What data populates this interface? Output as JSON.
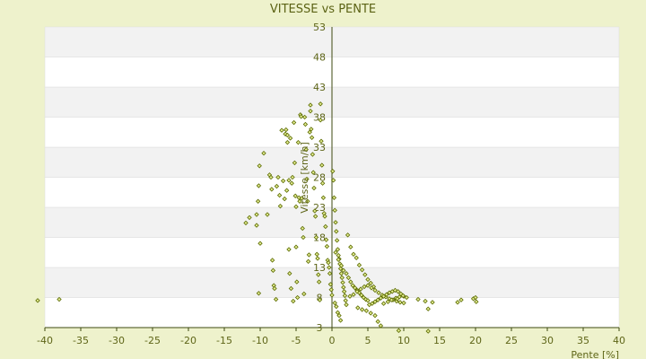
{
  "chart_data": {
    "type": "scatter",
    "title": "VITESSE vs PENTE",
    "xlabel": "Pente [%]",
    "ylabel": "Vitesse [km/h]",
    "xlim": [
      -40,
      40
    ],
    "ylim": [
      3,
      53
    ],
    "x_ticks": [
      "-40",
      "-35",
      "-30",
      "-25",
      "-20",
      "-15",
      "-10",
      "-5",
      "0",
      "5",
      "10",
      "15",
      "20",
      "25",
      "30",
      "35",
      "40"
    ],
    "y_ticks": [
      "53",
      "48",
      "43",
      "38",
      "33",
      "28",
      "23",
      "18",
      "13",
      "8",
      "3"
    ],
    "grid": "horizontal bands",
    "legend": "none",
    "colors": {
      "background": "#eef2cc",
      "band_light": "#ffffff",
      "band_dark": "#f2f2f2",
      "axis": "#3e4a10",
      "point_stroke": "#5a6a00",
      "point_fill": "#e3ec90"
    },
    "series": [
      {
        "points": [
          [
            -41,
            7.5
          ],
          [
            -38,
            7.7
          ],
          [
            -12,
            20.4
          ],
          [
            -11.5,
            21.3
          ],
          [
            -10.5,
            20.0
          ],
          [
            -10.3,
            24.0
          ],
          [
            -10.2,
            26.6
          ],
          [
            -10.5,
            21.8
          ],
          [
            -10.2,
            8.7
          ],
          [
            -10.1,
            29.9
          ],
          [
            -10,
            17.0
          ],
          [
            -9.5,
            32.0
          ],
          [
            -9.0,
            21.8
          ],
          [
            -8.7,
            28.4
          ],
          [
            -8.5,
            28.0
          ],
          [
            -8.4,
            26.0
          ],
          [
            -8.3,
            14.2
          ],
          [
            -8.2,
            12.5
          ],
          [
            -8.1,
            10.0
          ],
          [
            -8.0,
            9.5
          ],
          [
            -7.8,
            7.7
          ],
          [
            -7.7,
            26.5
          ],
          [
            -7.5,
            28.0
          ],
          [
            -7.3,
            25.0
          ],
          [
            -7.2,
            23.2
          ],
          [
            -7.0,
            35.8
          ],
          [
            -6.8,
            27.4
          ],
          [
            -6.6,
            24.4
          ],
          [
            -6.5,
            35.2
          ],
          [
            -6.4,
            35.9
          ],
          [
            -6.3,
            25.8
          ],
          [
            -6.2,
            35.0
          ],
          [
            -6.2,
            33.8
          ],
          [
            -6.0,
            27.5
          ],
          [
            -6.0,
            16.0
          ],
          [
            -5.9,
            12.0
          ],
          [
            -5.8,
            34.5
          ],
          [
            -5.7,
            9.5
          ],
          [
            -5.6,
            27.0
          ],
          [
            -5.5,
            28.0
          ],
          [
            -5.4,
            7.4
          ],
          [
            -5.3,
            37.1
          ],
          [
            -5.2,
            30.4
          ],
          [
            -5.1,
            24.9
          ],
          [
            -5.0,
            23.1
          ],
          [
            -5.0,
            16.4
          ],
          [
            -4.9,
            10.6
          ],
          [
            -4.8,
            8.0
          ],
          [
            -4.7,
            33.8
          ],
          [
            -4.6,
            24.6
          ],
          [
            -4.5,
            24.0
          ],
          [
            -4.4,
            38.4
          ],
          [
            -4.3,
            38.1
          ],
          [
            -4.2,
            24.5
          ],
          [
            -4.1,
            19.5
          ],
          [
            -4.0,
            18.0
          ],
          [
            -3.9,
            8.6
          ],
          [
            -3.8,
            38.0
          ],
          [
            -3.7,
            36.8
          ],
          [
            -3.6,
            32.6
          ],
          [
            -3.5,
            27.7
          ],
          [
            -3.4,
            24.0
          ],
          [
            -3.3,
            14.0
          ],
          [
            -3.2,
            15.1
          ],
          [
            -3.1,
            35.5
          ],
          [
            -3.0,
            40.0
          ],
          [
            -3.0,
            39.0
          ],
          [
            -2.9,
            36.0
          ],
          [
            -2.8,
            34.6
          ],
          [
            -2.7,
            31.8
          ],
          [
            -2.6,
            28.8
          ],
          [
            -2.5,
            26.2
          ],
          [
            -2.4,
            22.4
          ],
          [
            -2.3,
            21.5
          ],
          [
            -2.2,
            18.0
          ],
          [
            -2.1,
            15.2
          ],
          [
            -2.0,
            14.5
          ],
          [
            -1.9,
            11.8
          ],
          [
            -1.8,
            10.6
          ],
          [
            -1.7,
            7.6
          ],
          [
            -1.6,
            40.2
          ],
          [
            -1.6,
            37.5
          ],
          [
            -1.5,
            34.0
          ],
          [
            -1.4,
            30.0
          ],
          [
            -1.3,
            27.0
          ],
          [
            -1.2,
            24.6
          ],
          [
            -1.1,
            22.0
          ],
          [
            -1.0,
            21.5
          ],
          [
            -0.9,
            19.8
          ],
          [
            -0.8,
            17.6
          ],
          [
            -0.7,
            16.5
          ],
          [
            -0.6,
            14.2
          ],
          [
            -0.5,
            13.8
          ],
          [
            -0.4,
            13.0
          ],
          [
            -0.3,
            12.0
          ],
          [
            -0.2,
            10.2
          ],
          [
            -0.1,
            9.3
          ],
          [
            0.0,
            8.4
          ],
          [
            0.1,
            29.0
          ],
          [
            0.2,
            27.5
          ],
          [
            0.3,
            24.6
          ],
          [
            0.4,
            22.5
          ],
          [
            0.5,
            20.5
          ],
          [
            0.6,
            19.0
          ],
          [
            0.7,
            17.5
          ],
          [
            0.8,
            16.0
          ],
          [
            0.9,
            15.0
          ],
          [
            1.0,
            14.4
          ],
          [
            1.1,
            13.6
          ],
          [
            1.2,
            12.8
          ],
          [
            1.3,
            12.0
          ],
          [
            1.4,
            11.3
          ],
          [
            1.5,
            10.5
          ],
          [
            1.6,
            9.7
          ],
          [
            1.7,
            9.0
          ],
          [
            1.8,
            8.3
          ],
          [
            1.9,
            7.5
          ],
          [
            2.0,
            6.8
          ],
          [
            0.4,
            7.1
          ],
          [
            0.6,
            6.5
          ],
          [
            0.8,
            5.5
          ],
          [
            1.0,
            5.0
          ],
          [
            1.2,
            4.2
          ],
          [
            0.5,
            15.5
          ],
          [
            0.9,
            14.3
          ],
          [
            1.3,
            13.3
          ],
          [
            1.6,
            12.5
          ],
          [
            2.0,
            12.0
          ],
          [
            2.3,
            11.3
          ],
          [
            2.6,
            10.6
          ],
          [
            2.9,
            10.0
          ],
          [
            3.2,
            9.6
          ],
          [
            3.5,
            9.2
          ],
          [
            3.8,
            8.8
          ],
          [
            4.1,
            8.4
          ],
          [
            4.4,
            8.0
          ],
          [
            4.7,
            7.7
          ],
          [
            5.0,
            7.5
          ],
          [
            2.2,
            18.4
          ],
          [
            2.6,
            16.4
          ],
          [
            3.0,
            15.2
          ],
          [
            3.4,
            14.6
          ],
          [
            3.8,
            13.4
          ],
          [
            4.2,
            12.6
          ],
          [
            4.6,
            11.8
          ],
          [
            5.0,
            11.0
          ],
          [
            5.4,
            10.4
          ],
          [
            5.8,
            9.8
          ],
          [
            2.5,
            8.2
          ],
          [
            3.0,
            8.5
          ],
          [
            3.5,
            9.0
          ],
          [
            4.0,
            9.4
          ],
          [
            4.5,
            9.8
          ],
          [
            5.0,
            10.0
          ],
          [
            5.5,
            9.6
          ],
          [
            6.0,
            9.2
          ],
          [
            6.5,
            8.8
          ],
          [
            7.0,
            8.4
          ],
          [
            7.5,
            8.1
          ],
          [
            8.0,
            7.8
          ],
          [
            8.5,
            7.6
          ],
          [
            9.0,
            7.4
          ],
          [
            9.5,
            7.2
          ],
          [
            10.0,
            7.1
          ],
          [
            5.2,
            6.8
          ],
          [
            5.6,
            7.0
          ],
          [
            6.0,
            7.3
          ],
          [
            6.4,
            7.6
          ],
          [
            6.8,
            7.9
          ],
          [
            7.2,
            8.2
          ],
          [
            7.6,
            8.5
          ],
          [
            8.0,
            8.8
          ],
          [
            8.4,
            9.0
          ],
          [
            8.8,
            9.2
          ],
          [
            9.2,
            9.0
          ],
          [
            9.6,
            8.6
          ],
          [
            10.0,
            8.2
          ],
          [
            10.4,
            8.0
          ],
          [
            3.6,
            6.3
          ],
          [
            4.2,
            6.0
          ],
          [
            4.8,
            5.8
          ],
          [
            5.4,
            5.4
          ],
          [
            6.0,
            5.0
          ],
          [
            6.4,
            4.0
          ],
          [
            6.8,
            3.3
          ],
          [
            7.2,
            7.0
          ],
          [
            7.8,
            7.3
          ],
          [
            8.3,
            7.6
          ],
          [
            8.9,
            7.9
          ],
          [
            9.4,
            8.1
          ],
          [
            9.9,
            8.3
          ],
          [
            12.0,
            7.7
          ],
          [
            13.0,
            7.4
          ],
          [
            14.0,
            7.2
          ],
          [
            17.5,
            7.2
          ],
          [
            18.0,
            7.6
          ],
          [
            19.7,
            7.8
          ],
          [
            20.0,
            8.0
          ],
          [
            20.1,
            7.3
          ],
          [
            9.1,
            7.8
          ],
          [
            13.4,
            6.1
          ],
          [
            9.3,
            2.5
          ],
          [
            13.4,
            2.4
          ]
        ]
      }
    ]
  }
}
